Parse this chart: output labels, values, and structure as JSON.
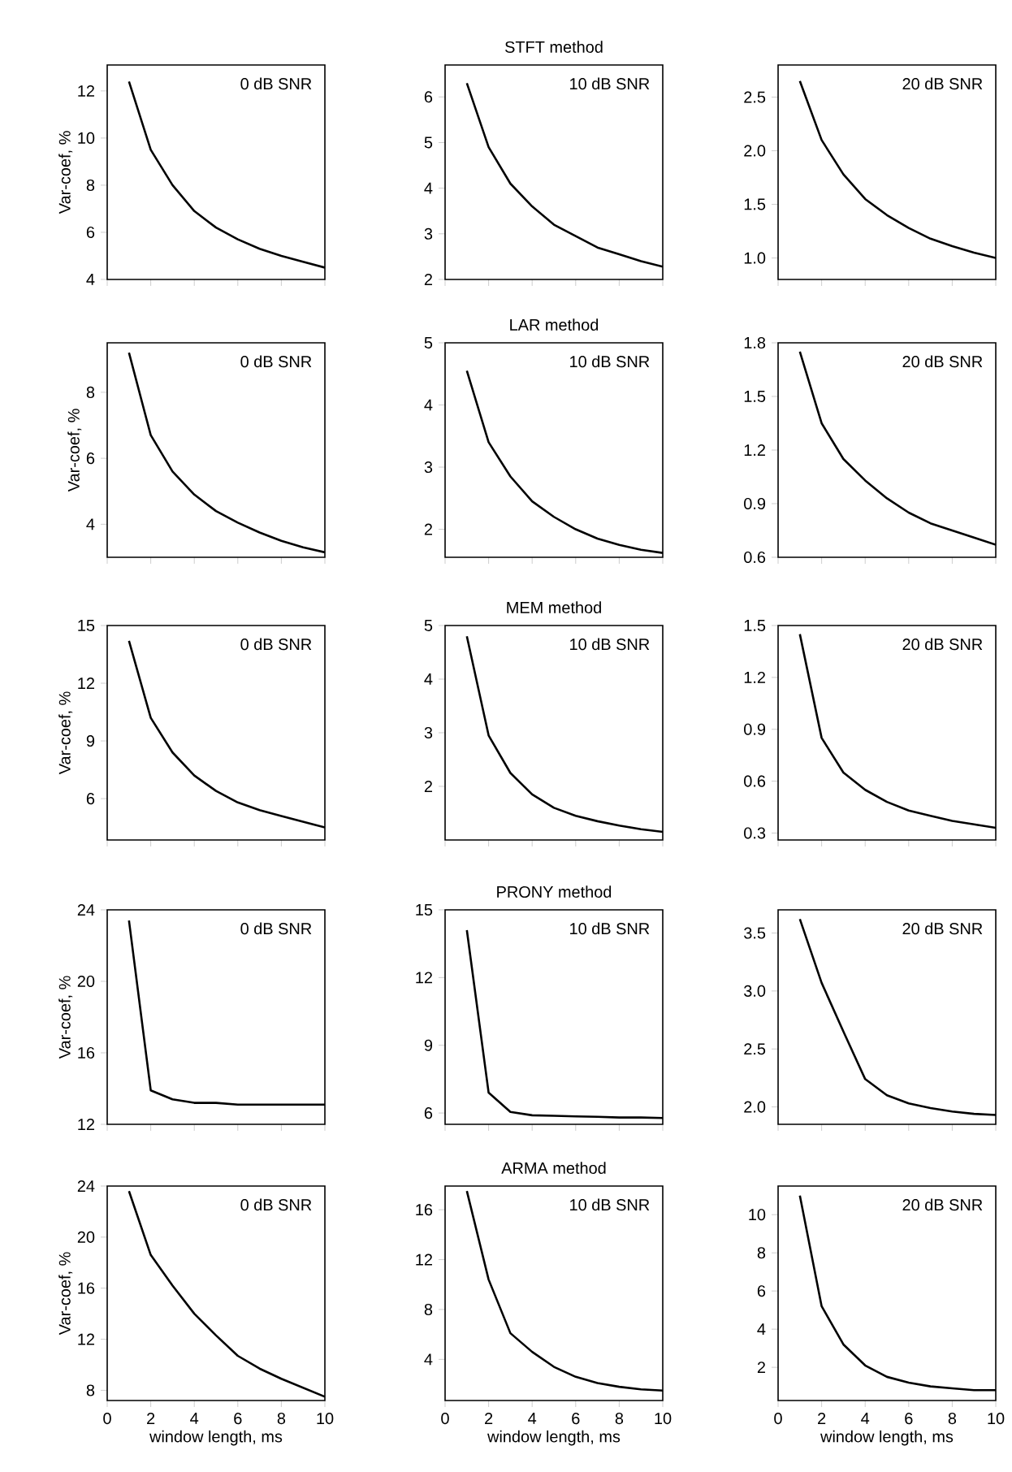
{
  "chart_data": [
    {
      "type": "line",
      "ylabel": "Var-coef, %",
      "annotations": [
        "0 dB SNR"
      ],
      "x": [
        1,
        2,
        3,
        4,
        5,
        6,
        7,
        8,
        9,
        10
      ],
      "xlim": [
        0,
        10
      ],
      "xticks": [
        0,
        2,
        4,
        6,
        8,
        10
      ],
      "ylim": [
        4,
        13.1
      ],
      "yticks": [
        4,
        6,
        8,
        10,
        12
      ],
      "tick_labels": "y",
      "series": [
        {
          "color": "#000000",
          "values": [
            12.4,
            9.5,
            8.0,
            6.9,
            6.2,
            5.7,
            5.3,
            5.0,
            4.75,
            4.5
          ]
        }
      ]
    },
    {
      "type": "line",
      "title": "STFT method",
      "annotations": [
        "10 dB SNR"
      ],
      "x": [
        1,
        2,
        3,
        4,
        5,
        6,
        7,
        8,
        9,
        10
      ],
      "xlim": [
        0,
        10
      ],
      "xticks": [
        0,
        2,
        4,
        6,
        8,
        10
      ],
      "ylim": [
        2,
        6.7
      ],
      "yticks": [
        2,
        3,
        4,
        5,
        6
      ],
      "tick_labels": "y",
      "series": [
        {
          "color": "#000000",
          "values": [
            6.3,
            4.9,
            4.1,
            3.6,
            3.2,
            2.95,
            2.7,
            2.55,
            2.4,
            2.28
          ]
        }
      ]
    },
    {
      "type": "line",
      "annotations": [
        "20 dB SNR"
      ],
      "x": [
        1,
        2,
        3,
        4,
        5,
        6,
        7,
        8,
        9,
        10
      ],
      "xlim": [
        0,
        10
      ],
      "xticks": [
        0,
        2,
        4,
        6,
        8,
        10
      ],
      "ylim": [
        0.8,
        2.8
      ],
      "yticks": [
        {
          "value": 1,
          "label": "1.0"
        },
        1.5,
        {
          "value": 2,
          "label": "2.0"
        },
        2.5
      ],
      "tick_labels": "y",
      "series": [
        {
          "color": "#000000",
          "values": [
            2.65,
            2.1,
            1.78,
            1.55,
            1.4,
            1.28,
            1.18,
            1.11,
            1.05,
            1.0
          ]
        }
      ]
    },
    {
      "type": "line",
      "ylabel": "Var-coef, %",
      "annotations": [
        "0 dB SNR"
      ],
      "x": [
        1,
        2,
        3,
        4,
        5,
        6,
        7,
        8,
        9,
        10
      ],
      "xlim": [
        0,
        10
      ],
      "xticks": [
        0,
        2,
        4,
        6,
        8,
        10
      ],
      "ylim": [
        3,
        9.5
      ],
      "yticks": [
        4,
        6,
        8
      ],
      "tick_labels": "y",
      "series": [
        {
          "color": "#000000",
          "values": [
            9.2,
            6.7,
            5.6,
            4.9,
            4.4,
            4.05,
            3.75,
            3.5,
            3.3,
            3.15
          ]
        }
      ]
    },
    {
      "type": "line",
      "title": "LAR method",
      "annotations": [
        "10 dB SNR"
      ],
      "x": [
        1,
        2,
        3,
        4,
        5,
        6,
        7,
        8,
        9,
        10
      ],
      "xlim": [
        0,
        10
      ],
      "xticks": [
        0,
        2,
        4,
        6,
        8,
        10
      ],
      "ylim": [
        1.55,
        5
      ],
      "yticks": [
        2,
        3,
        4,
        5
      ],
      "tick_labels": "y",
      "series": [
        {
          "color": "#000000",
          "values": [
            4.55,
            3.4,
            2.85,
            2.45,
            2.2,
            2.0,
            1.85,
            1.75,
            1.67,
            1.62
          ]
        }
      ]
    },
    {
      "type": "line",
      "annotations": [
        "20 dB SNR"
      ],
      "x": [
        1,
        2,
        3,
        4,
        5,
        6,
        7,
        8,
        9,
        10
      ],
      "xlim": [
        0,
        10
      ],
      "xticks": [
        0,
        2,
        4,
        6,
        8,
        10
      ],
      "ylim": [
        0.6,
        1.8
      ],
      "yticks": [
        0.6,
        0.9,
        1.2,
        1.5,
        1.8
      ],
      "tick_labels": "y",
      "series": [
        {
          "color": "#000000",
          "values": [
            1.75,
            1.35,
            1.15,
            1.03,
            0.93,
            0.85,
            0.79,
            0.75,
            0.71,
            0.67
          ]
        }
      ]
    },
    {
      "type": "line",
      "ylabel": "Var-coef, %",
      "annotations": [
        "0 dB SNR"
      ],
      "x": [
        1,
        2,
        3,
        4,
        5,
        6,
        7,
        8,
        9,
        10
      ],
      "xlim": [
        0,
        10
      ],
      "xticks": [
        0,
        2,
        4,
        6,
        8,
        10
      ],
      "ylim": [
        3.85,
        15
      ],
      "yticks": [
        6,
        9,
        12,
        15
      ],
      "tick_labels": "y",
      "series": [
        {
          "color": "#000000",
          "values": [
            14.2,
            10.2,
            8.4,
            7.2,
            6.4,
            5.8,
            5.4,
            5.1,
            4.8,
            4.5
          ]
        }
      ]
    },
    {
      "type": "line",
      "title": "MEM method",
      "annotations": [
        "10 dB SNR"
      ],
      "x": [
        1,
        2,
        3,
        4,
        5,
        6,
        7,
        8,
        9,
        10
      ],
      "xlim": [
        0,
        10
      ],
      "xticks": [
        0,
        2,
        4,
        6,
        8,
        10
      ],
      "ylim": [
        1,
        5
      ],
      "yticks": [
        2,
        3,
        4,
        5
      ],
      "tick_labels": "y",
      "series": [
        {
          "color": "#000000",
          "values": [
            4.8,
            2.95,
            2.25,
            1.85,
            1.6,
            1.45,
            1.35,
            1.27,
            1.2,
            1.15
          ]
        }
      ]
    },
    {
      "type": "line",
      "annotations": [
        "20 dB SNR"
      ],
      "x": [
        1,
        2,
        3,
        4,
        5,
        6,
        7,
        8,
        9,
        10
      ],
      "xlim": [
        0,
        10
      ],
      "xticks": [
        0,
        2,
        4,
        6,
        8,
        10
      ],
      "ylim": [
        0.26,
        1.5
      ],
      "yticks": [
        0.3,
        0.6,
        0.9,
        1.2,
        1.5
      ],
      "tick_labels": "y",
      "series": [
        {
          "color": "#000000",
          "values": [
            1.45,
            0.85,
            0.65,
            0.55,
            0.48,
            0.43,
            0.4,
            0.37,
            0.35,
            0.33
          ]
        }
      ]
    },
    {
      "type": "line",
      "ylabel": "Var-coef, %",
      "annotations": [
        "0 dB SNR"
      ],
      "x": [
        1,
        2,
        3,
        4,
        5,
        6,
        7,
        8,
        9,
        10
      ],
      "xlim": [
        0,
        10
      ],
      "xticks": [
        0,
        2,
        4,
        6,
        8,
        10
      ],
      "ylim": [
        12,
        24
      ],
      "yticks": [
        12,
        16,
        20,
        24
      ],
      "tick_labels": "y",
      "series": [
        {
          "color": "#000000",
          "values": [
            23.4,
            13.9,
            13.4,
            13.2,
            13.2,
            13.1,
            13.1,
            13.1,
            13.1,
            13.1
          ]
        }
      ]
    },
    {
      "type": "line",
      "title": "PRONY method",
      "annotations": [
        "10 dB SNR"
      ],
      "x": [
        1,
        2,
        3,
        4,
        5,
        6,
        7,
        8,
        9,
        10
      ],
      "xlim": [
        0,
        10
      ],
      "xticks": [
        0,
        2,
        4,
        6,
        8,
        10
      ],
      "ylim": [
        5.5,
        15
      ],
      "yticks": [
        6,
        9,
        12,
        15
      ],
      "tick_labels": "y",
      "series": [
        {
          "color": "#000000",
          "values": [
            14.1,
            6.9,
            6.05,
            5.9,
            5.88,
            5.85,
            5.83,
            5.8,
            5.8,
            5.78
          ]
        }
      ]
    },
    {
      "type": "line",
      "annotations": [
        "20 dB SNR"
      ],
      "x": [
        1,
        2,
        3,
        4,
        5,
        6,
        7,
        8,
        9,
        10
      ],
      "xlim": [
        0,
        10
      ],
      "xticks": [
        0,
        2,
        4,
        6,
        8,
        10
      ],
      "ylim": [
        1.85,
        3.7
      ],
      "yticks": [
        {
          "value": 2,
          "label": "2.0"
        },
        2.5,
        {
          "value": 3,
          "label": "3.0"
        },
        3.5
      ],
      "tick_labels": "y",
      "series": [
        {
          "color": "#000000",
          "values": [
            3.62,
            3.07,
            2.65,
            2.24,
            2.1,
            2.03,
            1.99,
            1.96,
            1.94,
            1.93
          ]
        }
      ]
    },
    {
      "type": "line",
      "ylabel": "Var-coef, %",
      "xlabel": "window length, ms",
      "annotations": [
        "0 dB SNR"
      ],
      "x": [
        1,
        2,
        3,
        4,
        5,
        6,
        7,
        8,
        9,
        10
      ],
      "xlim": [
        0,
        10
      ],
      "xticks": [
        0,
        2,
        4,
        6,
        8,
        10
      ],
      "ylim": [
        7.2,
        24
      ],
      "yticks": [
        8,
        12,
        16,
        20,
        24
      ],
      "series": [
        {
          "color": "#000000",
          "values": [
            23.6,
            18.6,
            16.2,
            14.0,
            12.3,
            10.7,
            9.7,
            8.9,
            8.2,
            7.5
          ]
        }
      ]
    },
    {
      "type": "line",
      "title": "ARMA method",
      "xlabel": "window length, ms",
      "annotations": [
        "10 dB SNR"
      ],
      "x": [
        1,
        2,
        3,
        4,
        5,
        6,
        7,
        8,
        9,
        10
      ],
      "xlim": [
        0,
        10
      ],
      "xticks": [
        0,
        2,
        4,
        6,
        8,
        10
      ],
      "ylim": [
        0.7,
        17.9
      ],
      "yticks": [
        4,
        8,
        12,
        16
      ],
      "series": [
        {
          "color": "#000000",
          "values": [
            17.5,
            10.4,
            6.1,
            4.6,
            3.4,
            2.6,
            2.1,
            1.8,
            1.6,
            1.5
          ]
        }
      ]
    },
    {
      "type": "line",
      "xlabel": "window length, ms",
      "annotations": [
        "20 dB SNR"
      ],
      "x": [
        1,
        2,
        3,
        4,
        5,
        6,
        7,
        8,
        9,
        10
      ],
      "xlim": [
        0,
        10
      ],
      "xticks": [
        0,
        2,
        4,
        6,
        8,
        10
      ],
      "ylim": [
        0.26,
        11.5
      ],
      "yticks": [
        2,
        4,
        6,
        8,
        10
      ],
      "series": [
        {
          "color": "#000000",
          "values": [
            11,
            5.2,
            3.2,
            2.1,
            1.5,
            1.2,
            1.0,
            0.9,
            0.8,
            0.8
          ]
        }
      ]
    }
  ]
}
